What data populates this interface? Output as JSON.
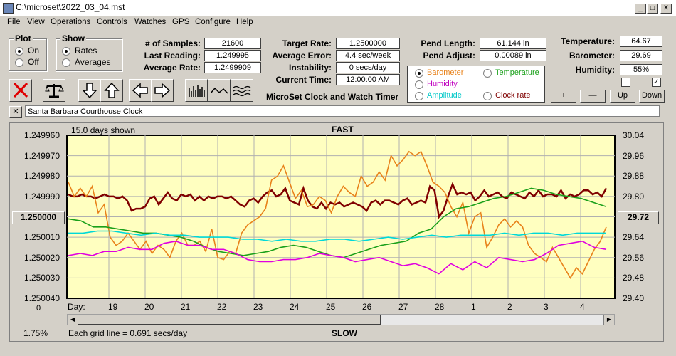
{
  "window": {
    "title": "C:\\microset\\2022_03_04.mst",
    "controls": [
      "_",
      "□",
      "✕"
    ]
  },
  "menu": [
    "File",
    "View",
    "Operations",
    "Controls",
    "Watches",
    "GPS",
    "Configure",
    "Help"
  ],
  "plot": {
    "label": "Plot",
    "on": "On",
    "off": "Off",
    "selected": "On"
  },
  "show": {
    "label": "Show",
    "rates": "Rates",
    "averages": "Averages",
    "selected": "Rates"
  },
  "stats": {
    "samples_label": "# of Samples:",
    "samples": "21600",
    "last_label": "Last Reading:",
    "last": "1.249995",
    "avg_label": "Average Rate:",
    "avg": "1.2499909",
    "target_label": "Target Rate:",
    "target": "1.2500000",
    "err_label": "Average Error:",
    "err": "4.4 sec/week",
    "instab_label": "Instability:",
    "instab": "0 secs/day",
    "time_label": "Current Time:",
    "time": "12:00:00 AM",
    "app_name": "MicroSet Clock and Watch Timer",
    "pend_len_label": "Pend Length:",
    "pend_len": "61.144 in",
    "pend_adj_label": "Pend Adjust:",
    "pend_adj": "0.00089 in",
    "temp_label": "Temperature:",
    "temp": "64.67",
    "baro_label": "Barometer:",
    "baro": "29.69",
    "hum_label": "Humidity:",
    "hum": "55%"
  },
  "overlay": {
    "options": [
      {
        "label": "Barometer",
        "color": "#e8821a",
        "selected": true
      },
      {
        "label": "Temperature",
        "color": "#1aa01a",
        "selected": false
      },
      {
        "label": "Humidity",
        "color": "#c000c0",
        "selected": false
      },
      {
        "label": "Amplitude",
        "color": "#00c8c8",
        "selected": false
      },
      {
        "label": "Clock rate",
        "color": "#800000",
        "selected": false
      }
    ]
  },
  "side_buttons": {
    "plus": "+",
    "minus": "—",
    "up": "Up",
    "down": "Down",
    "check2": "✓"
  },
  "watch_name": "Santa Barbara Courthouse Clock",
  "close_x": "✕",
  "chart_data": {
    "type": "line",
    "top_label": "FAST",
    "bottom_label": "SLOW",
    "days_shown": "15.0 days shown",
    "grid_note": "Each grid line = 0.691 secs/day",
    "percent": "1.75%",
    "x_label": "Day:",
    "x_ticks": [
      "19",
      "20",
      "21",
      "22",
      "23",
      "24",
      "25",
      "26",
      "27",
      "28",
      "1",
      "2",
      "3",
      "4"
    ],
    "y_left_ticks": [
      "1.249960",
      "1.249970",
      "1.249980",
      "1.249990",
      "1.250000",
      "1.250010",
      "1.250020",
      "1.250030",
      "1.250040"
    ],
    "y_left_center_button": "1.250000",
    "y_left_bottom_button": "0",
    "y_right_ticks": [
      "30.04",
      "29.96",
      "29.88",
      "29.80",
      "29.72",
      "29.64",
      "29.56",
      "29.48",
      "29.40"
    ],
    "y_right_center_button": "29.72",
    "series": [
      {
        "color": "#800000",
        "values": [
          1.249989,
          1.24999,
          1.24999,
          1.249989,
          1.24999,
          1.24999,
          1.249991,
          1.24999,
          1.249989,
          1.24999,
          1.24999,
          1.249991,
          1.24999,
          1.249992,
          1.249997,
          1.249996,
          1.249996,
          1.249995,
          1.249991,
          1.24999,
          1.249994,
          1.249991,
          1.249988,
          1.249991,
          1.249992,
          1.249989,
          1.24999,
          1.249989,
          1.249992,
          1.24999,
          1.249992,
          1.24999,
          1.249991,
          1.24999,
          1.24999,
          1.249991,
          1.24999,
          1.249992,
          1.249994,
          1.249995,
          1.249992,
          1.249991,
          1.249993,
          1.24999,
          1.249988,
          1.249987,
          1.24999,
          1.249989,
          1.249986,
          1.249992,
          1.249993,
          1.249994,
          1.249986,
          1.249992,
          1.249995,
          1.249996,
          1.249993,
          1.249996,
          1.249993,
          1.249994,
          1.249993,
          1.249995,
          1.249994,
          1.249993,
          1.249994,
          1.249995,
          1.249997,
          1.249993,
          1.249992,
          1.249994,
          1.249992,
          1.249992,
          1.249993,
          1.249994,
          1.249992,
          1.249991,
          1.249994,
          1.249993,
          1.249992,
          1.249993,
          1.249985,
          1.249987,
          1.25,
          1.249997,
          1.24999,
          1.249984,
          1.249989,
          1.249988,
          1.249989,
          1.249988,
          1.249992,
          1.24999,
          1.249987,
          1.24999,
          1.249989,
          1.249988,
          1.24999,
          1.249991,
          1.249988,
          1.249989,
          1.24999,
          1.249991,
          1.249988,
          1.24999,
          1.249987,
          1.24999,
          1.249989,
          1.249989,
          1.24999,
          1.249987,
          1.249991,
          1.249989,
          1.24999,
          1.249989,
          1.249987,
          1.249987,
          1.249989,
          1.249988,
          1.24999,
          1.249986
        ]
      },
      {
        "color": "#e8821a",
        "values": [
          1.249983,
          1.24999,
          1.249986,
          1.24999,
          1.249985,
          1.249998,
          1.249994,
          1.25001,
          1.250014,
          1.250012,
          1.250008,
          1.250012,
          1.250016,
          1.250012,
          1.250018,
          1.250014,
          1.250016,
          1.25002,
          1.250012,
          1.250008,
          1.250014,
          1.250014,
          1.250012,
          1.250017,
          1.250006,
          1.25002,
          1.250021,
          1.250017,
          1.250018,
          1.250008,
          1.250004,
          1.250002,
          1.25,
          1.249996,
          1.249982,
          1.24998,
          1.249975,
          1.249983,
          1.249991,
          1.249987,
          1.249995,
          1.249994,
          1.24999,
          1.249992,
          1.249998,
          1.24999,
          1.249985,
          1.249988,
          1.24999,
          1.24998,
          1.249985,
          1.249983,
          1.249978,
          1.249982,
          1.24997,
          1.249975,
          1.249972,
          1.249968,
          1.24997,
          1.249968,
          1.249975,
          1.249983,
          1.249985,
          1.249988,
          1.249995,
          1.25,
          1.249993,
          1.250008,
          1.25,
          1.249998,
          1.250015,
          1.25001,
          1.250004,
          1.250001,
          1.250005,
          1.250002,
          1.250005,
          1.250014,
          1.250018,
          1.25002,
          1.250022,
          1.250015,
          1.25002,
          1.250025,
          1.25003,
          1.250025,
          1.250028,
          1.250022,
          1.250016,
          1.250012,
          1.250005
        ]
      },
      {
        "color": "#1aa01a",
        "values": [
          1.250001,
          1.250002,
          1.250005,
          1.250005,
          1.250006,
          1.250007,
          1.250008,
          1.250008,
          1.250009,
          1.25001,
          1.250012,
          1.250015,
          1.250017,
          1.250018,
          1.250019,
          1.250018,
          1.250017,
          1.250015,
          1.250014,
          1.250015,
          1.250017,
          1.250019,
          1.25002,
          1.250018,
          1.250016,
          1.250014,
          1.250013,
          1.250012,
          1.250008,
          1.250006,
          1.25,
          1.249996,
          1.249995,
          1.249993,
          1.249991,
          1.24999,
          1.249988,
          1.249986,
          1.249987,
          1.249989,
          1.24999,
          1.249991,
          1.249993,
          1.249995
        ]
      },
      {
        "color": "#00d8d8",
        "values": [
          1.250008,
          1.250008,
          1.250007,
          1.250007,
          1.250008,
          1.250009,
          1.250008,
          1.250009,
          1.250009,
          1.25001,
          1.25001,
          1.25001,
          1.250011,
          1.250011,
          1.250012,
          1.250011,
          1.250012,
          1.250012,
          1.250011,
          1.250011,
          1.250012,
          1.250011,
          1.25001,
          1.250011,
          1.25001,
          1.250009,
          1.25001,
          1.250009,
          1.250009,
          1.250009,
          1.250008,
          1.250009,
          1.250008,
          1.250008,
          1.250009,
          1.250008,
          1.250008,
          1.250008
        ]
      },
      {
        "color": "#e000e0",
        "values": [
          1.250019,
          1.250018,
          1.250019,
          1.250017,
          1.250017,
          1.250015,
          1.250016,
          1.250016,
          1.250013,
          1.250012,
          1.250014,
          1.250014,
          1.250016,
          1.250016,
          1.250018,
          1.250021,
          1.250022,
          1.250022,
          1.250021,
          1.250021,
          1.25002,
          1.250018,
          1.250019,
          1.25002,
          1.250022,
          1.250021,
          1.25002,
          1.250022,
          1.250024,
          1.250023,
          1.250025,
          1.250028,
          1.250023,
          1.250026,
          1.250022,
          1.250025,
          1.25002,
          1.250021,
          1.250022,
          1.250021,
          1.250018,
          1.250014,
          1.250013,
          1.250012,
          1.250015,
          1.250016
        ]
      }
    ]
  }
}
